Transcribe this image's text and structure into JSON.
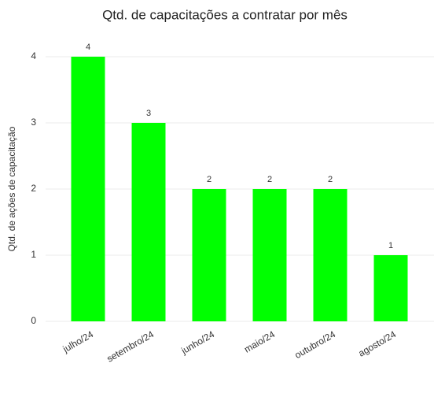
{
  "chart_data": {
    "type": "bar",
    "title": "Qtd. de capacitações a contratar por mês",
    "y_label": "Qtd. de ações de capacitação",
    "categories": [
      "julho/24",
      "setembro/24",
      "junho/24",
      "maio/24",
      "outubro/24",
      "agosto/24"
    ],
    "values": [
      4,
      3,
      2,
      2,
      2,
      1
    ],
    "color": "#00ff00",
    "ylim": [
      0,
      4
    ],
    "yticks": [
      0,
      1,
      2,
      3,
      4
    ],
    "grid": true,
    "data_labels": true
  }
}
